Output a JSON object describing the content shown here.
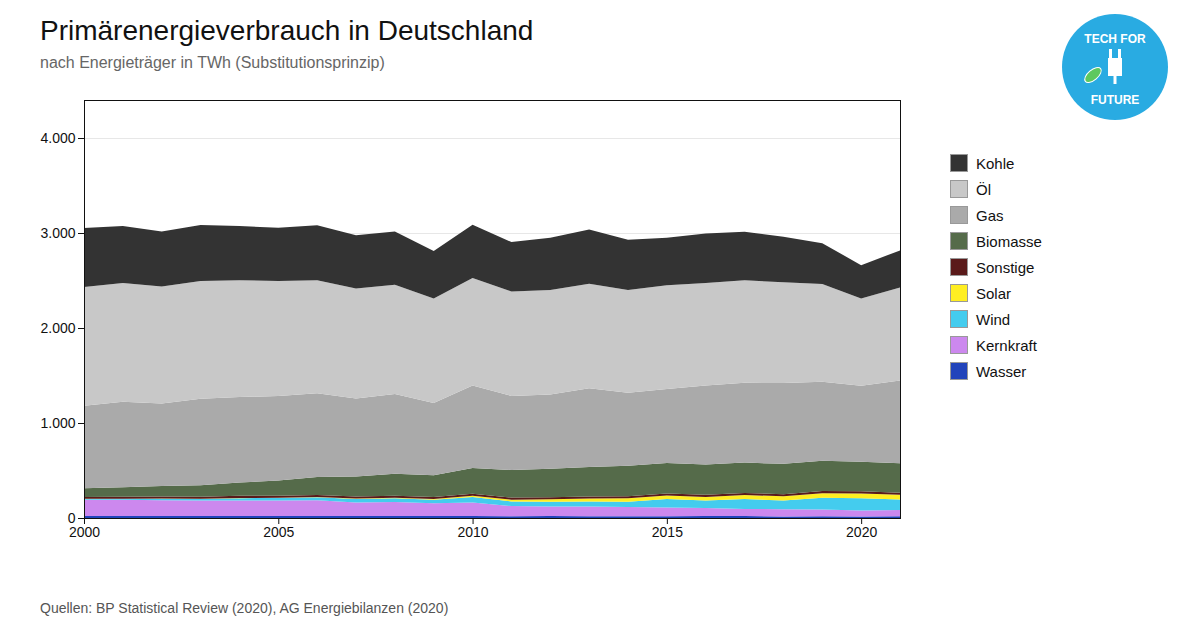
{
  "chart_data": {
    "type": "area",
    "stacked": true,
    "title": "Primärenergieverbrauch in Deutschland",
    "subtitle": "nach Energieträger in TWh (Substitutionsprinzip)",
    "source": "Quellen: BP Statistical Review (2020), AG Energiebilanzen (2020)",
    "annotations": [
      "TECH FOR",
      "FUTURE"
    ],
    "x": [
      2000,
      2001,
      2002,
      2003,
      2004,
      2005,
      2006,
      2007,
      2008,
      2009,
      2010,
      2011,
      2012,
      2013,
      2014,
      2015,
      2016,
      2017,
      2018,
      2019,
      2020,
      2021
    ],
    "series": [
      {
        "name": "Wasser",
        "color": "#2244bb",
        "values": [
          21,
          20,
          21,
          20,
          21,
          20,
          21,
          21,
          20,
          20,
          21,
          18,
          22,
          19,
          19,
          19,
          20,
          20,
          17,
          18,
          17,
          18
        ]
      },
      {
        "name": "Kernkraft",
        "color": "#cc88ee",
        "values": [
          170,
          171,
          167,
          163,
          163,
          163,
          167,
          141,
          148,
          135,
          141,
          108,
          99,
          102,
          97,
          92,
          85,
          76,
          76,
          71,
          61,
          65
        ]
      },
      {
        "name": "Wind",
        "color": "#44ccee",
        "values": [
          10,
          11,
          15,
          18,
          25,
          27,
          30,
          39,
          40,
          38,
          60,
          48,
          50,
          53,
          56,
          88,
          79,
          105,
          91,
          125,
          131,
          113
        ]
      },
      {
        "name": "Solar",
        "color": "#ffee22",
        "values": [
          1,
          1,
          1,
          1,
          2,
          2,
          2,
          3,
          4,
          6,
          12,
          19,
          26,
          30,
          35,
          38,
          38,
          40,
          45,
          47,
          50,
          49
        ]
      },
      {
        "name": "Sonstige",
        "color": "#5a1a1a",
        "values": [
          20,
          21,
          22,
          22,
          22,
          22,
          22,
          23,
          23,
          22,
          22,
          22,
          22,
          22,
          22,
          22,
          22,
          22,
          22,
          22,
          22,
          22
        ]
      },
      {
        "name": "Biomasse",
        "color": "#556b4a",
        "values": [
          90,
          100,
          110,
          120,
          140,
          160,
          190,
          210,
          230,
          230,
          270,
          290,
          300,
          310,
          320,
          320,
          320,
          320,
          320,
          320,
          310,
          310
        ]
      },
      {
        "name": "Gas",
        "color": "#aaaaaa",
        "values": [
          870,
          900,
          870,
          910,
          900,
          890,
          880,
          820,
          840,
          760,
          870,
          780,
          780,
          830,
          770,
          780,
          830,
          840,
          850,
          830,
          800,
          870
        ]
      },
      {
        "name": "Öl",
        "color": "#c8c8c8",
        "values": [
          1250,
          1250,
          1230,
          1240,
          1230,
          1210,
          1190,
          1160,
          1150,
          1100,
          1130,
          1100,
          1100,
          1100,
          1080,
          1090,
          1080,
          1080,
          1060,
          1030,
          920,
          980
        ]
      },
      {
        "name": "Kohle",
        "color": "#333333",
        "values": [
          620,
          600,
          580,
          590,
          570,
          560,
          580,
          560,
          560,
          500,
          560,
          520,
          550,
          570,
          530,
          500,
          520,
          510,
          480,
          430,
          350,
          390
        ]
      }
    ],
    "xlim": [
      2000,
      2021
    ],
    "xticks": [
      2000,
      2005,
      2010,
      2015,
      2020
    ],
    "ylim": [
      0,
      4400
    ],
    "yticks": [
      0,
      {
        "value": 1000,
        "label": "1.000"
      },
      {
        "value": 2000,
        "label": "2.000"
      },
      {
        "value": 3000,
        "label": "3.000"
      },
      {
        "value": 4000,
        "label": "4.000"
      }
    ],
    "grid": true,
    "legend": "right"
  }
}
